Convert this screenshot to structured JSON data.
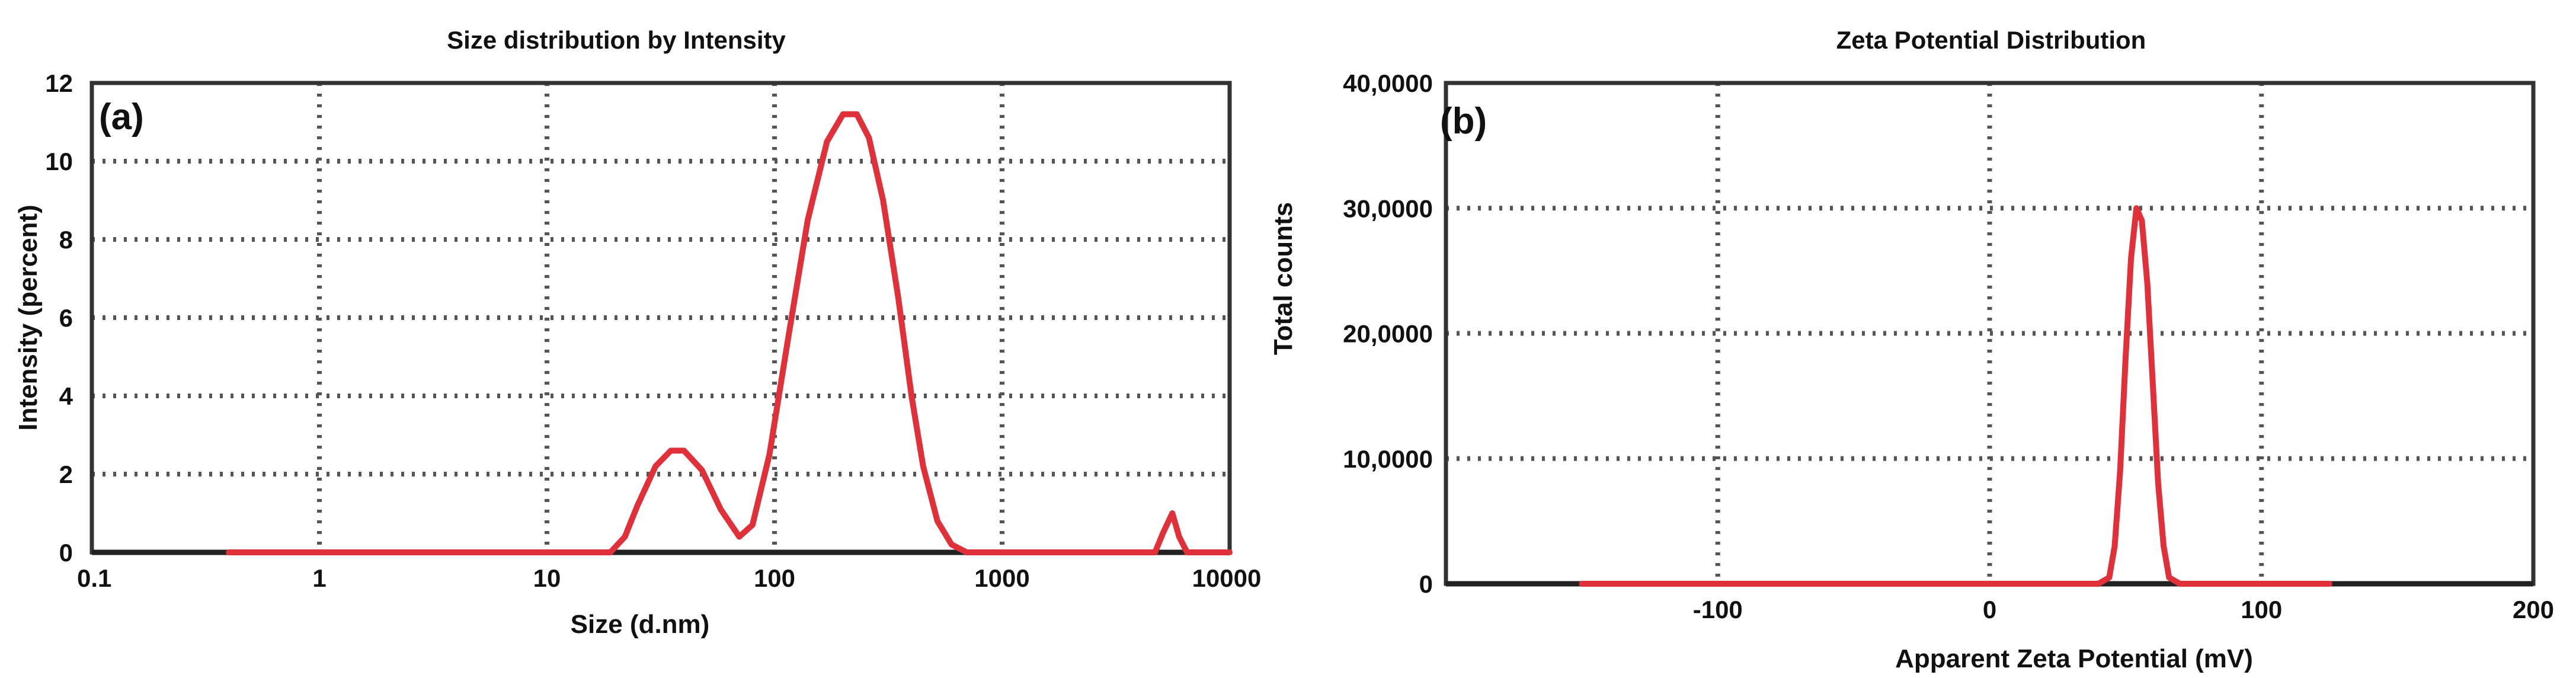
{
  "chart_data": [
    {
      "type": "line",
      "title": "Size distribution by Intensity",
      "panel_label": "(a)",
      "xlabel": "Size (d.nm)",
      "ylabel": "Intensity (percent)",
      "xscale": "log",
      "xlim": [
        0.1,
        10000
      ],
      "ylim": [
        0,
        12
      ],
      "x_ticks": [
        "0.1",
        "1",
        "10",
        "100",
        "1000",
        "10000"
      ],
      "y_ticks": [
        "0",
        "2",
        "4",
        "6",
        "8",
        "10",
        "12"
      ],
      "grid": true,
      "series": [
        {
          "color": "#e0303a",
          "x": [
            0.4,
            5,
            19,
            22,
            25,
            30,
            35,
            40,
            48,
            58,
            70,
            80,
            95,
            115,
            140,
            170,
            200,
            230,
            260,
            300,
            350,
            400,
            450,
            520,
            600,
            700,
            900,
            1500,
            3000,
            4700,
            5100,
            5600,
            6000,
            6500,
            7500,
            10000
          ],
          "y": [
            0,
            0,
            0,
            0.4,
            1.2,
            2.2,
            2.6,
            2.6,
            2.1,
            1.1,
            0.4,
            0.7,
            2.5,
            5.5,
            8.5,
            10.5,
            11.2,
            11.2,
            10.6,
            9.0,
            6.5,
            4.0,
            2.2,
            0.8,
            0.2,
            0,
            0,
            0,
            0,
            0,
            0.5,
            1.0,
            0.4,
            0,
            0,
            0
          ]
        }
      ]
    },
    {
      "type": "line",
      "title": "Zeta Potential Distribution",
      "panel_label": "(b)",
      "xlabel": "Apparent Zeta Potential (mV)",
      "ylabel": "Total counts",
      "xlim": [
        -200,
        200
      ],
      "ylim": [
        0,
        40
      ],
      "x_ticks": [
        "-100",
        "0",
        "100",
        "200"
      ],
      "y_ticks": [
        "0",
        "10,0000",
        "20,0000",
        "30,0000",
        "40,0000"
      ],
      "grid": true,
      "series": [
        {
          "color": "#e0303a",
          "x": [
            -150,
            40,
            44,
            46,
            48,
            50,
            52,
            54,
            56,
            58,
            60,
            62,
            64,
            66,
            70,
            125
          ],
          "y": [
            0,
            0,
            0.5,
            3,
            9,
            18,
            26,
            30,
            29,
            24,
            16,
            8,
            3,
            0.5,
            0,
            0
          ]
        }
      ]
    }
  ]
}
